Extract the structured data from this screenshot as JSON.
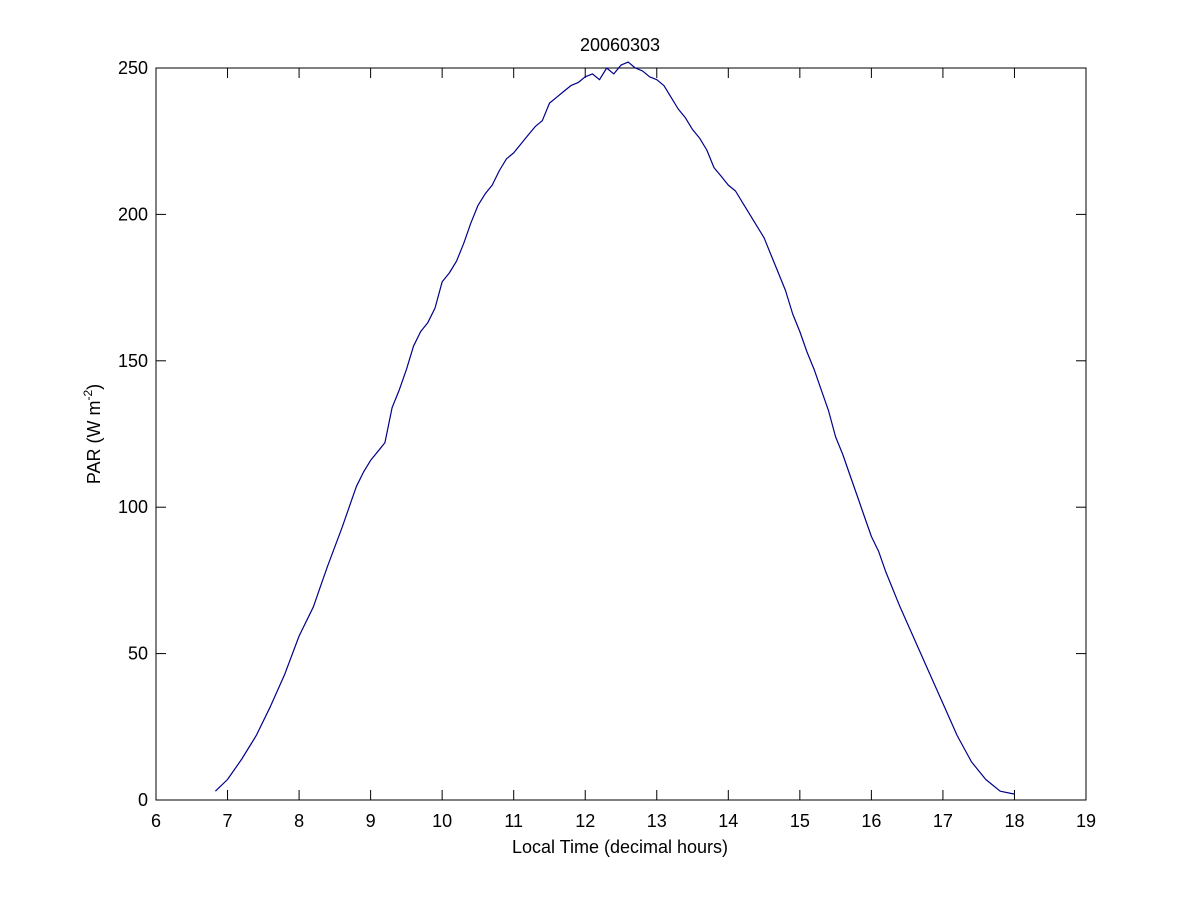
{
  "chart_data": {
    "type": "line",
    "title": "20060303",
    "xlabel": "Local Time (decimal hours)",
    "ylabel": {
      "prefix": "PAR (W m",
      "superscript": "-2",
      "suffix": ")"
    },
    "xlim": [
      6,
      19
    ],
    "ylim": [
      0,
      250
    ],
    "xticks": [
      6,
      7,
      8,
      9,
      10,
      11,
      12,
      13,
      14,
      15,
      16,
      17,
      18,
      19
    ],
    "yticks": [
      0,
      50,
      100,
      150,
      200,
      250
    ],
    "grid": false,
    "legend": "none",
    "series": [
      {
        "color": "#00008b",
        "x": [
          6.83,
          7.0,
          7.2,
          7.4,
          7.6,
          7.8,
          8.0,
          8.2,
          8.3,
          8.4,
          8.6,
          8.8,
          8.9,
          9.0,
          9.2,
          9.3,
          9.4,
          9.5,
          9.6,
          9.7,
          9.8,
          9.9,
          10.0,
          10.1,
          10.2,
          10.3,
          10.4,
          10.5,
          10.6,
          10.7,
          10.8,
          10.9,
          11.0,
          11.1,
          11.2,
          11.3,
          11.4,
          11.5,
          11.6,
          11.7,
          11.8,
          11.9,
          12.0,
          12.1,
          12.2,
          12.3,
          12.4,
          12.5,
          12.6,
          12.7,
          12.8,
          12.9,
          13.0,
          13.1,
          13.2,
          13.3,
          13.4,
          13.5,
          13.6,
          13.7,
          13.8,
          13.9,
          14.0,
          14.1,
          14.2,
          14.3,
          14.4,
          14.5,
          14.6,
          14.7,
          14.8,
          14.9,
          15.0,
          15.1,
          15.2,
          15.3,
          15.4,
          15.5,
          15.6,
          15.7,
          15.8,
          15.9,
          16.0,
          16.1,
          16.2,
          16.4,
          16.6,
          16.8,
          17.0,
          17.2,
          17.4,
          17.6,
          17.8,
          18.0
        ],
        "y": [
          3,
          7,
          14,
          22,
          32,
          43,
          56,
          66,
          73,
          80,
          93,
          107,
          112,
          116,
          122,
          134,
          140,
          147,
          155,
          160,
          163,
          168,
          177,
          180,
          184,
          190,
          197,
          203,
          207,
          210,
          215,
          219,
          221,
          224,
          227,
          230,
          232,
          238,
          240,
          242,
          244,
          245,
          247,
          248,
          246,
          250,
          248,
          251,
          252,
          250,
          249,
          247,
          246,
          244,
          240,
          236,
          233,
          229,
          226,
          222,
          216,
          213,
          210,
          208,
          204,
          200,
          196,
          192,
          186,
          180,
          174,
          166,
          160,
          153,
          147,
          140,
          133,
          124,
          118,
          111,
          104,
          97,
          90,
          85,
          78,
          66,
          55,
          44,
          33,
          22,
          13,
          7,
          3,
          2
        ]
      }
    ]
  }
}
